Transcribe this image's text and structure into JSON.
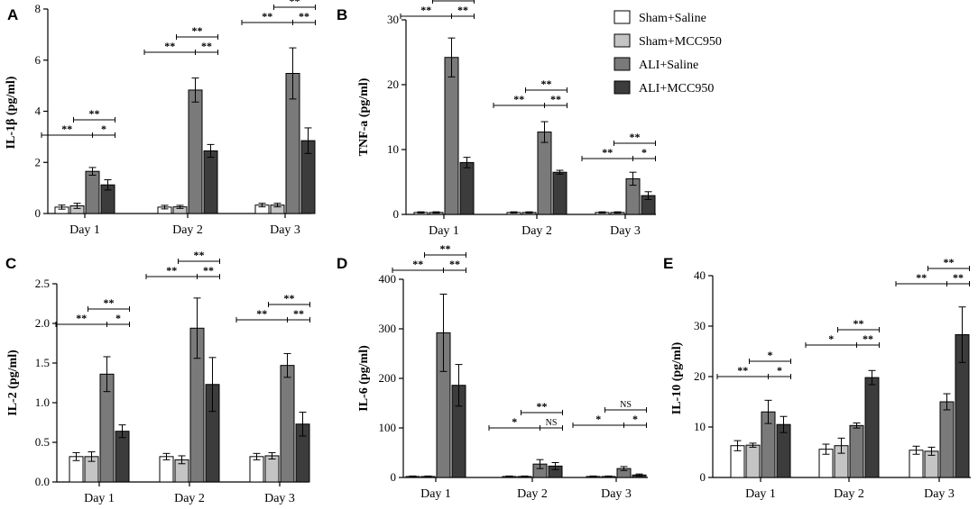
{
  "legend": [
    {
      "label": "Sham+Saline",
      "color": "#ffffff"
    },
    {
      "label": "Sham+MCC950",
      "color": "#c4c4c4"
    },
    {
      "label": "ALI+Saline",
      "color": "#7a7a7a"
    },
    {
      "label": "ALI+MCC950",
      "color": "#3c3c3c"
    }
  ],
  "chart_data": [
    {
      "panel": "A",
      "type": "bar",
      "ylabel": "IL-1β (pg/ml)",
      "ylim": [
        0,
        8
      ],
      "yticks": [
        "0",
        "2",
        "4",
        "6",
        "8"
      ],
      "categories": [
        "Day 1",
        "Day 2",
        "Day 3"
      ],
      "series": [
        {
          "name": "Sham+Saline",
          "values": [
            0.25,
            0.25,
            0.33
          ],
          "errors": [
            0.08,
            0.07,
            0.07
          ]
        },
        {
          "name": "Sham+MCC950",
          "values": [
            0.3,
            0.26,
            0.33
          ],
          "errors": [
            0.1,
            0.06,
            0.07
          ]
        },
        {
          "name": "ALI+Saline",
          "values": [
            1.65,
            4.83,
            5.48
          ],
          "errors": [
            0.15,
            0.47,
            1.0
          ]
        },
        {
          "name": "ALI+MCC950",
          "values": [
            1.12,
            2.45,
            2.85
          ],
          "errors": [
            0.2,
            0.25,
            0.5
          ]
        }
      ],
      "significance": [
        {
          "label": "**",
          "top": "**",
          "left": "**",
          "right": "*"
        },
        {
          "label": "**",
          "top": "**",
          "left": "**",
          "right": "**"
        },
        {
          "label": "**",
          "top": "**",
          "left": "**",
          "right": "**"
        }
      ]
    },
    {
      "panel": "B",
      "type": "bar",
      "ylabel": "TNF-a (pg/ml)",
      "ylim": [
        0,
        30
      ],
      "yticks": [
        "0",
        "10",
        "20",
        "30"
      ],
      "categories": [
        "Day 1",
        "Day 2",
        "Day 3"
      ],
      "series": [
        {
          "name": "Sham+Saline",
          "values": [
            0.3,
            0.3,
            0.3
          ],
          "errors": [
            0.1,
            0.1,
            0.1
          ]
        },
        {
          "name": "Sham+MCC950",
          "values": [
            0.3,
            0.3,
            0.3
          ],
          "errors": [
            0.1,
            0.1,
            0.1
          ]
        },
        {
          "name": "ALI+Saline",
          "values": [
            24.2,
            12.7,
            5.5
          ],
          "errors": [
            3.0,
            1.6,
            1.0
          ]
        },
        {
          "name": "ALI+MCC950",
          "values": [
            8.0,
            6.5,
            2.9
          ],
          "errors": [
            0.8,
            0.3,
            0.6
          ]
        }
      ],
      "significance": [
        {
          "top": "**",
          "left": "**",
          "right": "**"
        },
        {
          "top": "**",
          "left": "**",
          "right": "**"
        },
        {
          "top": "**",
          "left": "**",
          "right": "*"
        }
      ]
    },
    {
      "panel": "C",
      "type": "bar",
      "ylabel": "IL-2 (pg/ml)",
      "ylim": [
        0,
        2.5
      ],
      "yticks": [
        "0.0",
        "0.5",
        "1.0",
        "1.5",
        "2.0",
        "2.5"
      ],
      "categories": [
        "Day 1",
        "Day 2",
        "Day 3"
      ],
      "series": [
        {
          "name": "Sham+Saline",
          "values": [
            0.32,
            0.32,
            0.32
          ],
          "errors": [
            0.05,
            0.04,
            0.04
          ]
        },
        {
          "name": "Sham+MCC950",
          "values": [
            0.32,
            0.28,
            0.33
          ],
          "errors": [
            0.06,
            0.05,
            0.04
          ]
        },
        {
          "name": "ALI+Saline",
          "values": [
            1.36,
            1.94,
            1.47
          ],
          "errors": [
            0.22,
            0.38,
            0.15
          ]
        },
        {
          "name": "ALI+MCC950",
          "values": [
            0.64,
            1.23,
            0.73
          ],
          "errors": [
            0.08,
            0.34,
            0.15
          ]
        }
      ],
      "significance": [
        {
          "top": "**",
          "left": "**",
          "right": "*"
        },
        {
          "top": "**",
          "left": "**",
          "right": "**"
        },
        {
          "top": "**",
          "left": "**",
          "right": "**"
        }
      ]
    },
    {
      "panel": "D",
      "type": "bar",
      "ylabel": "IL-6 (pg/ml)",
      "ylim": [
        0,
        400
      ],
      "yticks": [
        "0",
        "100",
        "200",
        "300",
        "400"
      ],
      "categories": [
        "Day 1",
        "Day 2",
        "Day 3"
      ],
      "series": [
        {
          "name": "Sham+Saline",
          "values": [
            2,
            2,
            2
          ],
          "errors": [
            1,
            1,
            1
          ]
        },
        {
          "name": "Sham+MCC950",
          "values": [
            2,
            2,
            2
          ],
          "errors": [
            1,
            1,
            1
          ]
        },
        {
          "name": "ALI+Saline",
          "values": [
            292,
            27,
            18
          ],
          "errors": [
            78,
            9,
            4
          ]
        },
        {
          "name": "ALI+MCC950",
          "values": [
            186,
            23,
            5
          ],
          "errors": [
            42,
            7,
            2
          ]
        }
      ],
      "significance": [
        {
          "top": "**",
          "left": "**",
          "right": "**"
        },
        {
          "top": "**",
          "left": "*",
          "right": "NS"
        },
        {
          "top": "NS",
          "left": "*",
          "right": "*"
        }
      ]
    },
    {
      "panel": "E",
      "type": "bar",
      "ylabel": "IL-10 (pg/ml)",
      "ylim": [
        0,
        40
      ],
      "yticks": [
        "0",
        "10",
        "20",
        "30",
        "40"
      ],
      "categories": [
        "Day 1",
        "Day 2",
        "Day 3"
      ],
      "series": [
        {
          "name": "Sham+Saline",
          "values": [
            6.3,
            5.6,
            5.4
          ],
          "errors": [
            1.0,
            1.0,
            0.8
          ]
        },
        {
          "name": "Sham+MCC950",
          "values": [
            6.4,
            6.3,
            5.2
          ],
          "errors": [
            0.4,
            1.5,
            0.8
          ]
        },
        {
          "name": "ALI+Saline",
          "values": [
            13.0,
            10.3,
            15.0
          ],
          "errors": [
            2.3,
            0.5,
            1.6
          ]
        },
        {
          "name": "ALI+MCC950",
          "values": [
            10.5,
            19.8,
            28.3
          ],
          "errors": [
            1.6,
            1.4,
            5.5
          ]
        }
      ],
      "significance": [
        {
          "top": "*",
          "left": "**",
          "right": "*"
        },
        {
          "top": "**",
          "left": "*",
          "right": "**"
        },
        {
          "top": "**",
          "left": "**",
          "right": "**"
        }
      ]
    }
  ]
}
